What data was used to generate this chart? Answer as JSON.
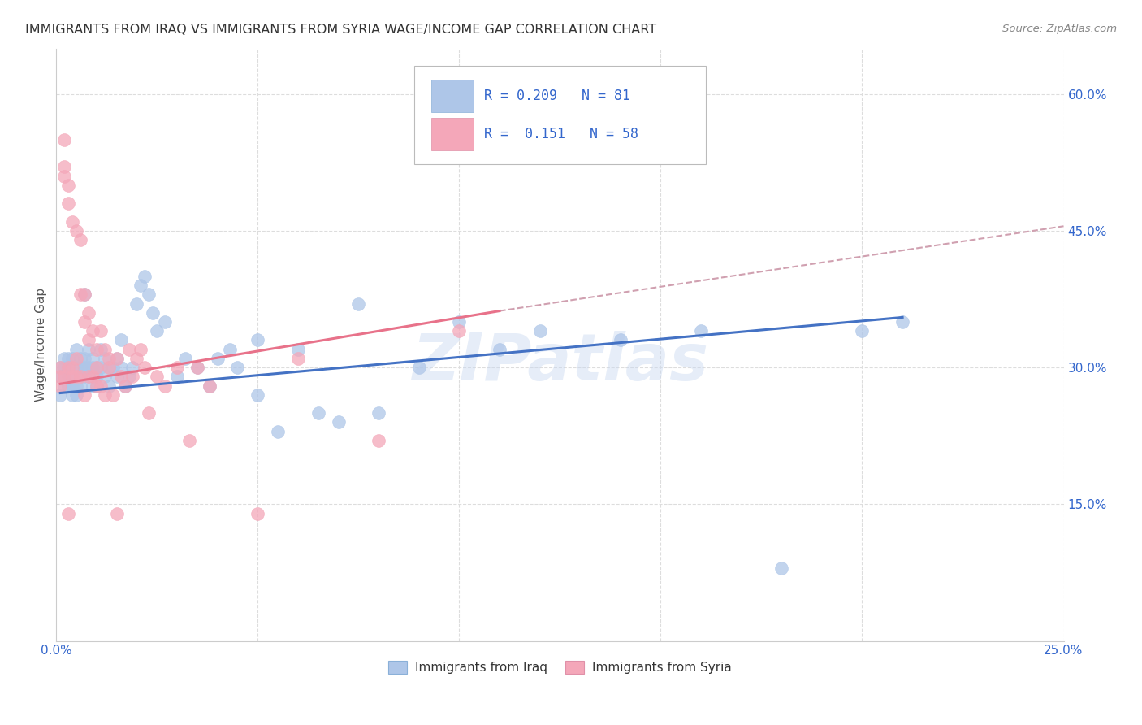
{
  "title": "IMMIGRANTS FROM IRAQ VS IMMIGRANTS FROM SYRIA WAGE/INCOME GAP CORRELATION CHART",
  "source": "Source: ZipAtlas.com",
  "ylabel": "Wage/Income Gap",
  "xlim": [
    0.0,
    0.25
  ],
  "ylim": [
    0.0,
    0.65
  ],
  "xtick_positions": [
    0.0,
    0.05,
    0.1,
    0.15,
    0.2,
    0.25
  ],
  "xticklabels": [
    "0.0%",
    "",
    "",
    "",
    "",
    "25.0%"
  ],
  "ytick_positions": [
    0.0,
    0.15,
    0.3,
    0.45,
    0.6
  ],
  "yticklabels_right": [
    "",
    "15.0%",
    "30.0%",
    "45.0%",
    "60.0%"
  ],
  "iraq_color": "#aec6e8",
  "syria_color": "#f4a7b9",
  "iraq_line_color": "#4472C4",
  "syria_line_color": "#E8728A",
  "dash_color": "#d0a0b0",
  "iraq_R": 0.209,
  "iraq_N": 81,
  "syria_R": 0.151,
  "syria_N": 58,
  "legend_iraq": "Immigrants from Iraq",
  "legend_syria": "Immigrants from Syria",
  "watermark": "ZIPatlas",
  "iraq_x": [
    0.001,
    0.001,
    0.001,
    0.002,
    0.002,
    0.002,
    0.002,
    0.003,
    0.003,
    0.003,
    0.003,
    0.004,
    0.004,
    0.004,
    0.004,
    0.005,
    0.005,
    0.005,
    0.005,
    0.006,
    0.006,
    0.006,
    0.006,
    0.007,
    0.007,
    0.007,
    0.007,
    0.008,
    0.008,
    0.008,
    0.009,
    0.009,
    0.009,
    0.01,
    0.01,
    0.01,
    0.011,
    0.011,
    0.012,
    0.012,
    0.013,
    0.013,
    0.014,
    0.015,
    0.015,
    0.016,
    0.016,
    0.017,
    0.018,
    0.019,
    0.02,
    0.021,
    0.022,
    0.023,
    0.024,
    0.025,
    0.027,
    0.03,
    0.032,
    0.035,
    0.038,
    0.04,
    0.043,
    0.045,
    0.05,
    0.055,
    0.06,
    0.065,
    0.07,
    0.08,
    0.09,
    0.1,
    0.11,
    0.12,
    0.14,
    0.16,
    0.18,
    0.2,
    0.21,
    0.05,
    0.075
  ],
  "iraq_y": [
    0.27,
    0.29,
    0.3,
    0.28,
    0.3,
    0.29,
    0.31,
    0.28,
    0.3,
    0.29,
    0.31,
    0.27,
    0.31,
    0.29,
    0.28,
    0.32,
    0.27,
    0.3,
    0.28,
    0.3,
    0.31,
    0.29,
    0.28,
    0.3,
    0.38,
    0.29,
    0.31,
    0.32,
    0.29,
    0.3,
    0.28,
    0.3,
    0.31,
    0.29,
    0.3,
    0.28,
    0.32,
    0.3,
    0.29,
    0.31,
    0.3,
    0.28,
    0.3,
    0.31,
    0.29,
    0.3,
    0.33,
    0.28,
    0.29,
    0.3,
    0.37,
    0.39,
    0.4,
    0.38,
    0.36,
    0.34,
    0.35,
    0.29,
    0.31,
    0.3,
    0.28,
    0.31,
    0.32,
    0.3,
    0.27,
    0.23,
    0.32,
    0.25,
    0.24,
    0.25,
    0.3,
    0.35,
    0.32,
    0.34,
    0.33,
    0.34,
    0.08,
    0.34,
    0.35,
    0.33,
    0.37
  ],
  "syria_x": [
    0.001,
    0.001,
    0.001,
    0.002,
    0.002,
    0.002,
    0.003,
    0.003,
    0.003,
    0.004,
    0.004,
    0.004,
    0.005,
    0.005,
    0.005,
    0.006,
    0.006,
    0.006,
    0.007,
    0.007,
    0.007,
    0.008,
    0.008,
    0.008,
    0.009,
    0.009,
    0.01,
    0.01,
    0.01,
    0.011,
    0.011,
    0.012,
    0.012,
    0.013,
    0.013,
    0.014,
    0.015,
    0.015,
    0.016,
    0.017,
    0.018,
    0.019,
    0.02,
    0.021,
    0.022,
    0.023,
    0.025,
    0.027,
    0.03,
    0.033,
    0.035,
    0.038,
    0.05,
    0.06,
    0.08,
    0.1,
    0.002,
    0.003
  ],
  "syria_y": [
    0.28,
    0.29,
    0.3,
    0.55,
    0.52,
    0.29,
    0.5,
    0.48,
    0.3,
    0.3,
    0.46,
    0.29,
    0.45,
    0.29,
    0.31,
    0.44,
    0.29,
    0.38,
    0.38,
    0.35,
    0.27,
    0.36,
    0.33,
    0.29,
    0.29,
    0.34,
    0.32,
    0.3,
    0.28,
    0.28,
    0.34,
    0.27,
    0.32,
    0.3,
    0.31,
    0.27,
    0.31,
    0.14,
    0.29,
    0.28,
    0.32,
    0.29,
    0.31,
    0.32,
    0.3,
    0.25,
    0.29,
    0.28,
    0.3,
    0.22,
    0.3,
    0.28,
    0.14,
    0.31,
    0.22,
    0.34,
    0.51,
    0.14
  ],
  "iraq_trend_x": [
    0.001,
    0.21
  ],
  "iraq_trend_y": [
    0.272,
    0.355
  ],
  "syria_trend_x": [
    0.001,
    0.11
  ],
  "syria_trend_y": [
    0.282,
    0.362
  ],
  "dash_trend_x": [
    0.11,
    0.25
  ],
  "dash_trend_y": [
    0.362,
    0.455
  ]
}
